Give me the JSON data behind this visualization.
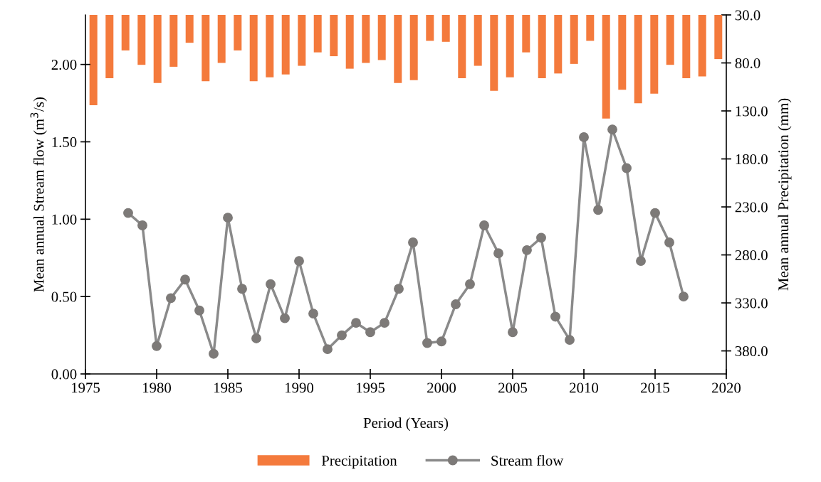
{
  "chart_data": {
    "type": "line",
    "xlabel": "Period (Years)",
    "ylabel": "Mean annual Stream flow (m$^{3}$/s)",
    "y2label": "Mean annual Precipitation (mm)",
    "xlim": [
      1975,
      2020
    ],
    "xticks": [
      1975,
      1980,
      1985,
      1990,
      1995,
      2000,
      2005,
      2010,
      2015,
      2020
    ],
    "ylim": [
      0,
      2.32
    ],
    "yticks": [
      {
        "value": 0,
        "label": "0.00"
      },
      {
        "value": 0.5,
        "label": "0.50"
      },
      {
        "value": 1,
        "label": "1.00"
      },
      {
        "value": 1.5,
        "label": "1.50"
      },
      {
        "value": 2,
        "label": "2.00"
      }
    ],
    "y2lim": [
      404,
      30
    ],
    "y2ticks": [
      {
        "value": 30,
        "label": "30.0"
      },
      {
        "value": 80,
        "label": "80.0"
      },
      {
        "value": 130,
        "label": "130.0"
      },
      {
        "value": 180,
        "label": "180.0"
      },
      {
        "value": 230,
        "label": "230.0"
      },
      {
        "value": 280,
        "label": "280.0"
      },
      {
        "value": 330,
        "label": "330.0"
      },
      {
        "value": 380,
        "label": "380.0"
      }
    ],
    "grid": false,
    "legend": "bottom",
    "marker": "circle",
    "line_style": "solid",
    "series": [
      {
        "name": "Precipitation",
        "type": "bar",
        "axis": "y2",
        "color": "#f47a3c",
        "x": [
          1975.56,
          1976.69,
          1977.81,
          1978.94,
          1980.06,
          1981.19,
          1982.31,
          1983.44,
          1984.56,
          1985.69,
          1986.81,
          1987.94,
          1989.06,
          1990.19,
          1991.31,
          1992.44,
          1993.56,
          1994.69,
          1995.81,
          1996.94,
          1998.06,
          1999.19,
          2000.31,
          2001.44,
          2002.56,
          2003.69,
          2004.81,
          2005.94,
          2007.06,
          2008.19,
          2009.31,
          2010.44,
          2011.56,
          2012.69,
          2013.81,
          2014.94,
          2016.06,
          2017.19,
          2018.31,
          2019.44
        ],
        "values": [
          124,
          96,
          67,
          82,
          101,
          84,
          59,
          99,
          80,
          67,
          99,
          95,
          92,
          83,
          69,
          73,
          86,
          80,
          77,
          101,
          98,
          57,
          58,
          96,
          83,
          109,
          95,
          69,
          96,
          91,
          81,
          57,
          138,
          108,
          122,
          112,
          82,
          96,
          94,
          76
        ]
      },
      {
        "name": "Stream flow",
        "color": "#8a8a8a",
        "x": [
          1978,
          1979,
          1980,
          1981,
          1982,
          1983,
          1984,
          1985,
          1986,
          1987,
          1988,
          1989,
          1990,
          1991,
          1992,
          1993,
          1994,
          1995,
          1996,
          1997,
          1998,
          1999,
          2000,
          2001,
          2002,
          2003,
          2004,
          2005,
          2006,
          2007,
          2008,
          2009,
          2010,
          2011,
          2012,
          2013,
          2014,
          2015,
          2016,
          2017
        ],
        "values": [
          1.04,
          0.96,
          0.18,
          0.49,
          0.61,
          0.41,
          0.13,
          1.01,
          0.55,
          0.23,
          0.58,
          0.36,
          0.73,
          0.39,
          0.16,
          0.25,
          0.33,
          0.27,
          0.33,
          0.55,
          0.85,
          0.2,
          0.21,
          0.45,
          0.58,
          0.96,
          0.78,
          0.27,
          0.8,
          0.88,
          0.37,
          0.22,
          1.53,
          1.06,
          1.58,
          1.33,
          0.73,
          1.04,
          0.85,
          0.5
        ]
      }
    ]
  }
}
